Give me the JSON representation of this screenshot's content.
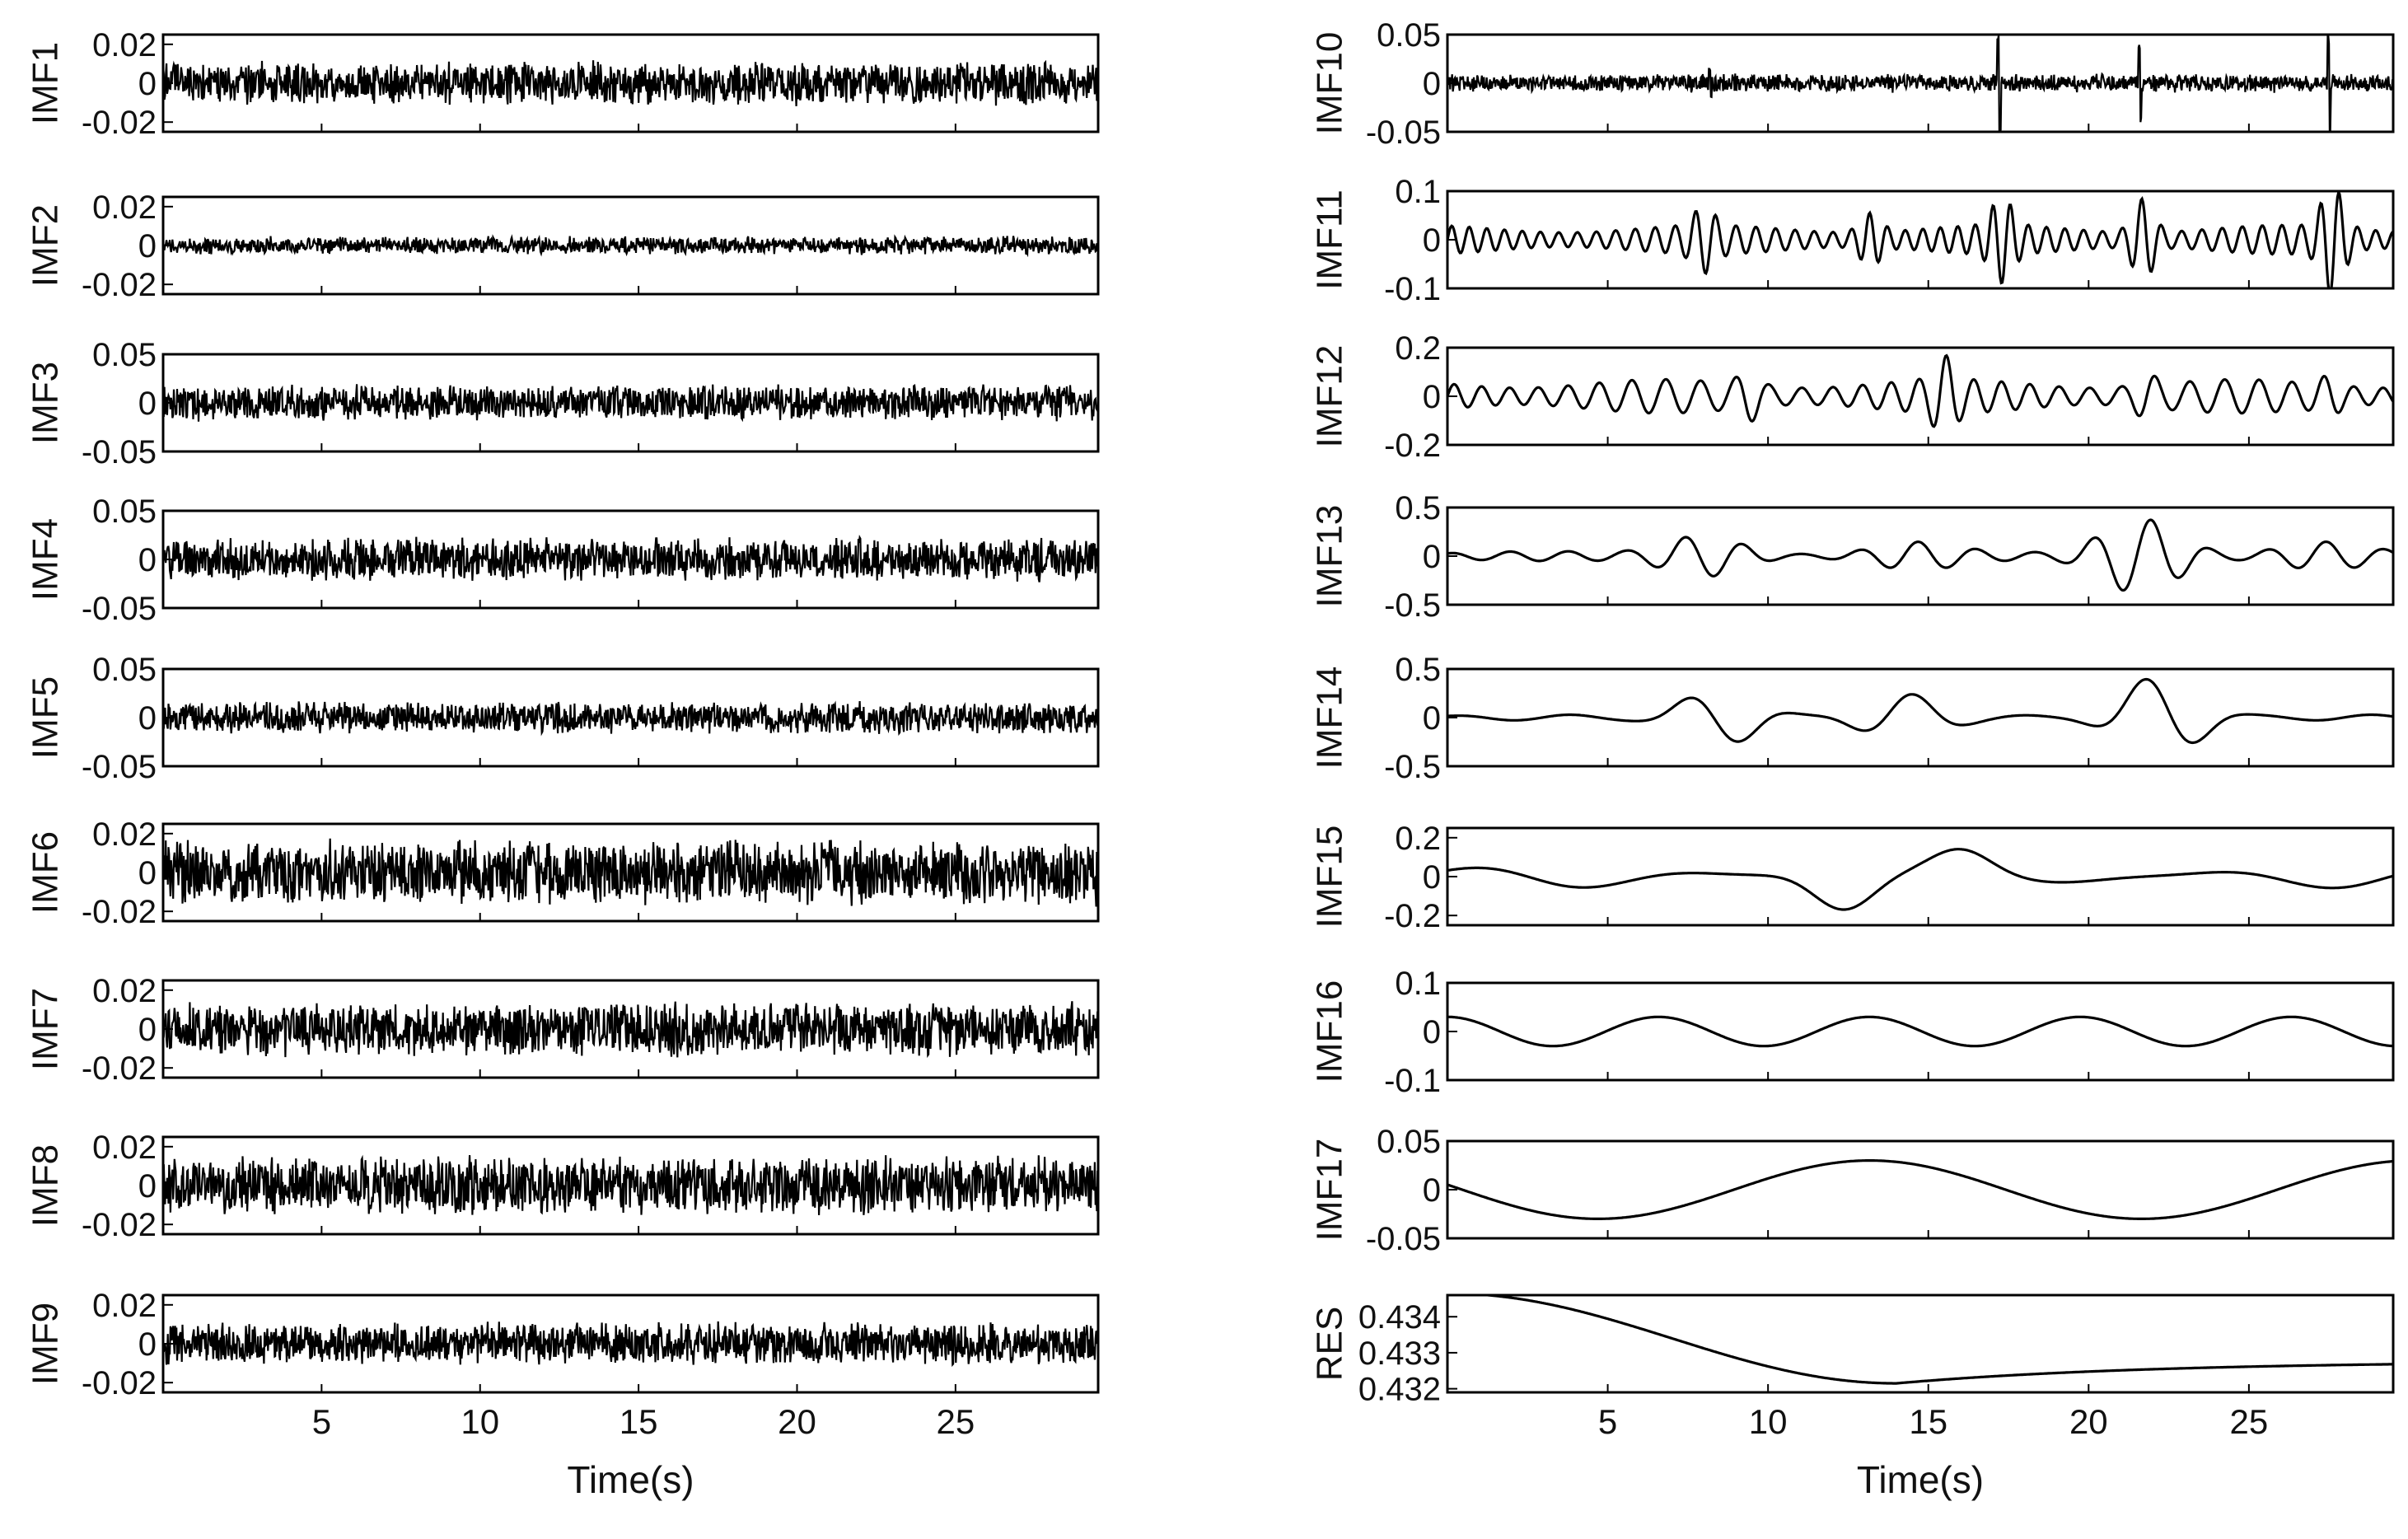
{
  "chart_data": {
    "type": "line",
    "x_axis": {
      "label": "Time(s)",
      "range": [
        0,
        29.5
      ],
      "ticks": [
        5,
        10,
        15,
        20,
        25
      ]
    },
    "columns": [
      {
        "panels": [
          {
            "label": "IMF1",
            "ylim": [
              -0.025,
              0.025
            ],
            "yticks": [
              {
                "v": 0.02,
                "t": "0.02"
              },
              {
                "v": 0,
                "t": "0"
              },
              {
                "v": -0.02,
                "t": "-0.02"
              }
            ],
            "kind": "noise",
            "amp": 0.012,
            "seed": 11
          },
          {
            "label": "IMF2",
            "ylim": [
              -0.025,
              0.025
            ],
            "yticks": [
              {
                "v": 0.02,
                "t": "0.02"
              },
              {
                "v": 0,
                "t": "0"
              },
              {
                "v": -0.02,
                "t": "-0.02"
              }
            ],
            "kind": "noise",
            "amp": 0.005,
            "seed": 12
          },
          {
            "label": "IMF3",
            "ylim": [
              -0.05,
              0.05
            ],
            "yticks": [
              {
                "v": 0.05,
                "t": "0.05"
              },
              {
                "v": 0,
                "t": "0"
              },
              {
                "v": -0.05,
                "t": "-0.05"
              }
            ],
            "kind": "noise",
            "amp": 0.02,
            "seed": 13
          },
          {
            "label": "IMF4",
            "ylim": [
              -0.05,
              0.05
            ],
            "yticks": [
              {
                "v": 0.05,
                "t": "0.05"
              },
              {
                "v": 0,
                "t": "0"
              },
              {
                "v": -0.05,
                "t": "-0.05"
              }
            ],
            "kind": "noise",
            "amp": 0.024,
            "seed": 14
          },
          {
            "label": "IMF5",
            "ylim": [
              -0.05,
              0.05
            ],
            "yticks": [
              {
                "v": 0.05,
                "t": "0.05"
              },
              {
                "v": 0,
                "t": "0"
              },
              {
                "v": -0.05,
                "t": "-0.05"
              }
            ],
            "kind": "noise",
            "amp": 0.018,
            "seed": 15
          },
          {
            "label": "IMF6",
            "ylim": [
              -0.025,
              0.025
            ],
            "yticks": [
              {
                "v": 0.02,
                "t": "0.02"
              },
              {
                "v": 0,
                "t": "0"
              },
              {
                "v": -0.02,
                "t": "-0.02"
              }
            ],
            "kind": "noise",
            "amp": 0.018,
            "seed": 16
          },
          {
            "label": "IMF7",
            "ylim": [
              -0.025,
              0.025
            ],
            "yticks": [
              {
                "v": 0.02,
                "t": "0.02"
              },
              {
                "v": 0,
                "t": "0"
              },
              {
                "v": -0.02,
                "t": "-0.02"
              }
            ],
            "kind": "noise",
            "amp": 0.015,
            "seed": 17
          },
          {
            "label": "IMF8",
            "ylim": [
              -0.025,
              0.025
            ],
            "yticks": [
              {
                "v": 0.02,
                "t": "0.02"
              },
              {
                "v": 0,
                "t": "0"
              },
              {
                "v": -0.02,
                "t": "-0.02"
              }
            ],
            "kind": "noise",
            "amp": 0.016,
            "seed": 18
          },
          {
            "label": "IMF9",
            "ylim": [
              -0.025,
              0.025
            ],
            "yticks": [
              {
                "v": 0.02,
                "t": "0.02"
              },
              {
                "v": 0,
                "t": "0"
              },
              {
                "v": -0.02,
                "t": "-0.02"
              }
            ],
            "kind": "noise",
            "amp": 0.012,
            "seed": 19
          }
        ]
      },
      {
        "panels": [
          {
            "label": "IMF10",
            "ylim": [
              -0.05,
              0.05
            ],
            "yticks": [
              {
                "v": 0.05,
                "t": "0.05"
              },
              {
                "v": 0,
                "t": "0"
              },
              {
                "v": -0.05,
                "t": "-0.05"
              }
            ],
            "kind": "noise",
            "amp": 0.01,
            "seed": 20,
            "spikes": [
              [
                8.2,
                0.02
              ],
              [
                17.2,
                0.045
              ],
              [
                21.6,
                0.035
              ],
              [
                27.5,
                0.045
              ]
            ]
          },
          {
            "label": "IMF11",
            "ylim": [
              -0.1,
              0.1
            ],
            "yticks": [
              {
                "v": 0.1,
                "t": "0.1"
              },
              {
                "v": 0,
                "t": "0"
              },
              {
                "v": -0.1,
                "t": "-0.1"
              }
            ],
            "kind": "wave",
            "freq": 0.9,
            "amp": 0.03,
            "seed": 21,
            "bursts": [
              [
                8.0,
                0.04
              ],
              [
                13.2,
                0.04
              ],
              [
                17.3,
                0.06
              ],
              [
                21.7,
                0.07
              ],
              [
                27.6,
                0.09
              ]
            ]
          },
          {
            "label": "IMF12",
            "ylim": [
              -0.2,
              0.2
            ],
            "yticks": [
              {
                "v": 0.2,
                "t": "0.2"
              },
              {
                "v": 0,
                "t": "0"
              },
              {
                "v": -0.2,
                "t": "-0.2"
              }
            ],
            "kind": "wave",
            "freq": 0.55,
            "amp": 0.07,
            "seed": 22,
            "bursts": [
              [
                9.4,
                0.06
              ],
              [
                15.5,
                0.1
              ],
              [
                21.8,
                0.05
              ],
              [
                27.5,
                0.04
              ]
            ]
          },
          {
            "label": "IMF13",
            "ylim": [
              -0.5,
              0.5
            ],
            "yticks": [
              {
                "v": 0.5,
                "t": "0.5"
              },
              {
                "v": 0,
                "t": "0"
              },
              {
                "v": -0.5,
                "t": "-0.5"
              }
            ],
            "kind": "packets",
            "base": 0.05,
            "freq": 0.55,
            "packets": [
              [
                8.0,
                0.2
              ],
              [
                14.6,
                0.1
              ],
              [
                21.6,
                0.38
              ],
              [
                27.3,
                0.1
              ]
            ]
          },
          {
            "label": "IMF14",
            "ylim": [
              -0.5,
              0.5
            ],
            "yticks": [
              {
                "v": 0.5,
                "t": "0.5"
              },
              {
                "v": 0,
                "t": "0"
              },
              {
                "v": -0.5,
                "t": "-0.5"
              }
            ],
            "kind": "packets",
            "base": 0.03,
            "freq": 0.28,
            "packets": [
              [
                8.5,
                0.28
              ],
              [
                14.2,
                0.22
              ],
              [
                22.2,
                0.42
              ]
            ]
          },
          {
            "label": "IMF15",
            "ylim": [
              -0.25,
              0.25
            ],
            "yticks": [
              {
                "v": 0.2,
                "t": "0.2"
              },
              {
                "v": 0,
                "t": "0"
              },
              {
                "v": -0.2,
                "t": "-0.2"
              }
            ],
            "kind": "packets",
            "base": 0.06,
            "freq": 0.13,
            "packets": [
              [
                12.5,
                0.14
              ],
              [
                16.0,
                0.08
              ]
            ]
          },
          {
            "label": "IMF16",
            "ylim": [
              -0.1,
              0.1
            ],
            "yticks": [
              {
                "v": 0.1,
                "t": "0.1"
              },
              {
                "v": 0,
                "t": "0"
              },
              {
                "v": -0.1,
                "t": "-0.1"
              }
            ],
            "kind": "sines",
            "terms": [
              [
                0.03,
                0.152,
                0.0
              ]
            ]
          },
          {
            "label": "IMF17",
            "ylim": [
              -0.05,
              0.05
            ],
            "yticks": [
              {
                "v": 0.05,
                "t": "0.05"
              },
              {
                "v": 0,
                "t": "0"
              },
              {
                "v": -0.05,
                "t": "-0.05"
              }
            ],
            "kind": "sines",
            "terms": [
              [
                0.03,
                0.059,
                1.4
              ]
            ]
          },
          {
            "label": "RES",
            "ylim": [
              0.4319,
              0.4346
            ],
            "yticks": [
              {
                "v": 0.434,
                "t": "0.434"
              },
              {
                "v": 0.433,
                "t": "0.433"
              },
              {
                "v": 0.432,
                "t": "0.432"
              }
            ],
            "kind": "residue"
          }
        ]
      }
    ]
  }
}
